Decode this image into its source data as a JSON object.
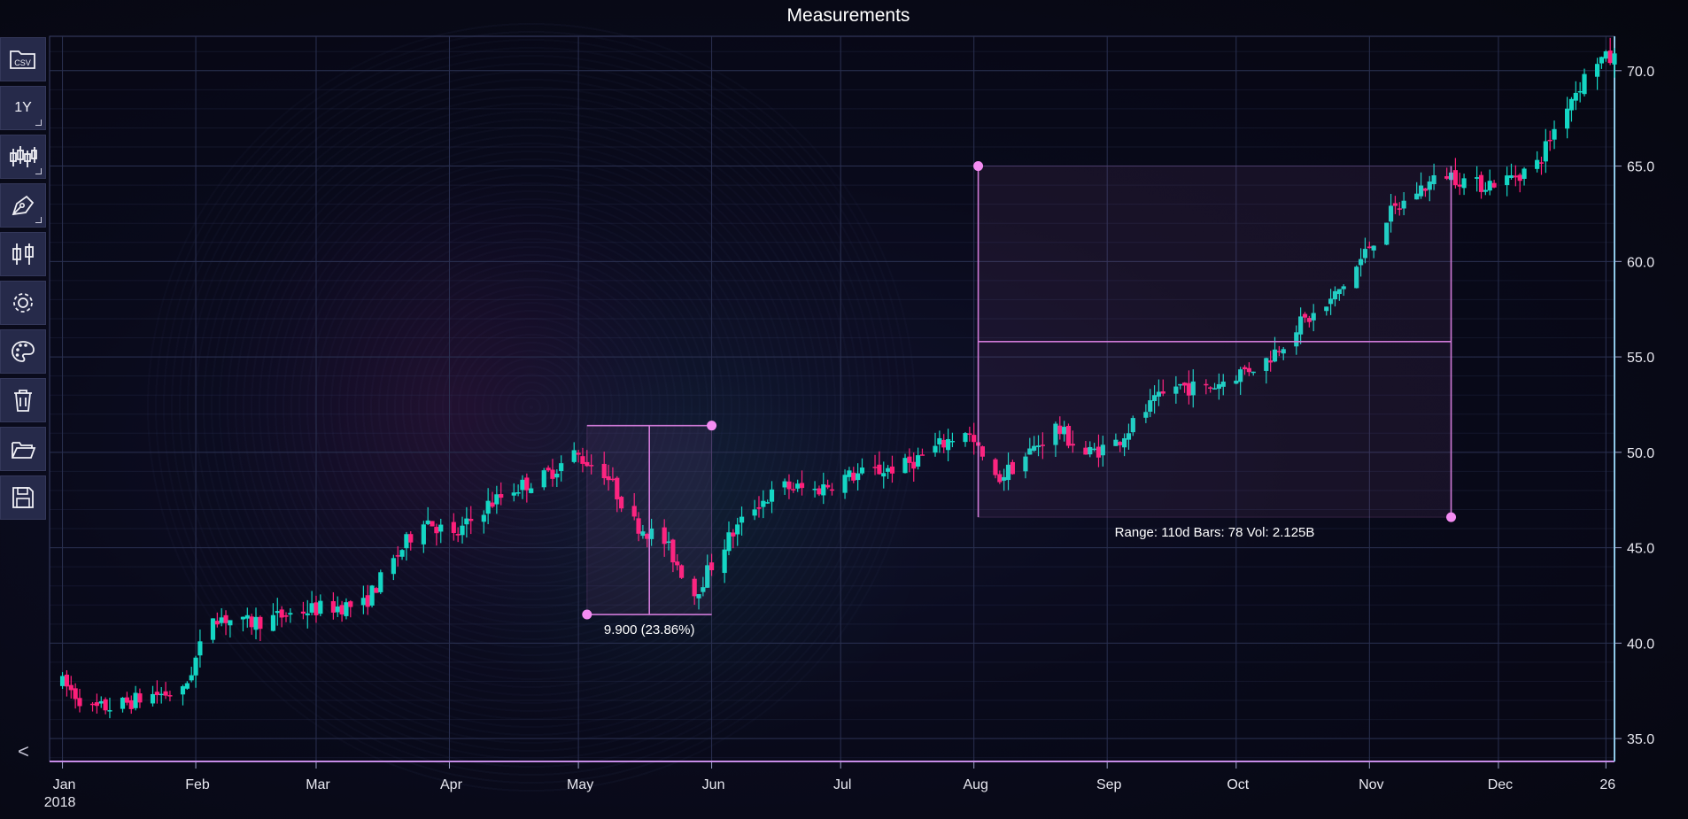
{
  "title": "Measurements",
  "toolbar": {
    "buttons": [
      {
        "icon": "csv-folder-icon",
        "label": "CSV"
      },
      {
        "icon": "timeframe-icon",
        "label": "1Y"
      },
      {
        "icon": "ohlc-icon",
        "label": ""
      },
      {
        "icon": "pen-icon",
        "label": ""
      },
      {
        "icon": "candlestick-icon",
        "label": ""
      },
      {
        "icon": "gear-icon",
        "label": ""
      },
      {
        "icon": "palette-icon",
        "label": ""
      },
      {
        "icon": "trash-icon",
        "label": ""
      },
      {
        "icon": "folder-open-icon",
        "label": ""
      },
      {
        "icon": "save-icon",
        "label": ""
      }
    ],
    "collapse_label": "<"
  },
  "colors": {
    "up": "#14d6c4",
    "down": "#ff1f7a",
    "measure": "#d07ad8",
    "handle": "#f48cf2",
    "grid": "#2a3050"
  },
  "chart_data": {
    "type": "candlestick",
    "title": "Measurements",
    "x_axis": {
      "range": [
        "2017-12-29",
        "2018-12-28"
      ],
      "ticks": [
        {
          "date": "2018-01-01",
          "label": "Jan",
          "sublabel": "2018"
        },
        {
          "date": "2018-02-01",
          "label": "Feb"
        },
        {
          "date": "2018-03-01",
          "label": "Mar"
        },
        {
          "date": "2018-04-01",
          "label": "Apr"
        },
        {
          "date": "2018-05-01",
          "label": "May"
        },
        {
          "date": "2018-06-01",
          "label": "Jun"
        },
        {
          "date": "2018-07-01",
          "label": "Jul"
        },
        {
          "date": "2018-08-01",
          "label": "Aug"
        },
        {
          "date": "2018-09-01",
          "label": "Sep"
        },
        {
          "date": "2018-10-01",
          "label": "Oct"
        },
        {
          "date": "2018-11-01",
          "label": "Nov"
        },
        {
          "date": "2018-12-01",
          "label": "Dec"
        },
        {
          "date": "2018-12-26",
          "label": "26"
        }
      ]
    },
    "y_axis": {
      "range": [
        33.8,
        71.8
      ],
      "ticks": [
        35.0,
        40.0,
        45.0,
        50.0,
        55.0,
        60.0,
        65.0,
        70.0
      ],
      "tick_labels": [
        "35.0",
        "40.0",
        "45.0",
        "50.0",
        "55.0",
        "60.0",
        "65.0",
        "70.0"
      ],
      "side": "right"
    },
    "grid": true,
    "closes": [
      [
        "2018-01-01",
        37.9
      ],
      [
        "2018-01-08",
        36.5
      ],
      [
        "2018-01-15",
        36.8
      ],
      [
        "2018-01-22",
        37.3
      ],
      [
        "2018-01-29",
        37.4
      ],
      [
        "2018-02-05",
        41.5
      ],
      [
        "2018-02-12",
        41.0
      ],
      [
        "2018-02-19",
        41.3
      ],
      [
        "2018-02-26",
        41.7
      ],
      [
        "2018-03-05",
        41.9
      ],
      [
        "2018-03-12",
        42.0
      ],
      [
        "2018-03-19",
        44.3
      ],
      [
        "2018-03-26",
        46.6
      ],
      [
        "2018-04-02",
        45.5
      ],
      [
        "2018-04-09",
        47.1
      ],
      [
        "2018-04-16",
        48.1
      ],
      [
        "2018-04-23",
        48.7
      ],
      [
        "2018-04-30",
        49.9
      ],
      [
        "2018-05-07",
        49.0
      ],
      [
        "2018-05-14",
        46.3
      ],
      [
        "2018-05-21",
        45.3
      ],
      [
        "2018-05-28",
        42.6
      ],
      [
        "2018-06-04",
        45.2
      ],
      [
        "2018-06-11",
        47.2
      ],
      [
        "2018-06-18",
        48.2
      ],
      [
        "2018-06-25",
        48.0
      ],
      [
        "2018-07-02",
        48.7
      ],
      [
        "2018-07-09",
        49.0
      ],
      [
        "2018-07-16",
        49.3
      ],
      [
        "2018-07-23",
        50.2
      ],
      [
        "2018-07-30",
        51.2
      ],
      [
        "2018-08-06",
        48.5
      ],
      [
        "2018-08-13",
        49.8
      ],
      [
        "2018-08-20",
        51.3
      ],
      [
        "2018-08-27",
        49.9
      ],
      [
        "2018-09-03",
        50.5
      ],
      [
        "2018-09-10",
        52.2
      ],
      [
        "2018-09-17",
        53.5
      ],
      [
        "2018-09-24",
        53.3
      ],
      [
        "2018-10-01",
        54.1
      ],
      [
        "2018-10-08",
        54.8
      ],
      [
        "2018-10-15",
        56.6
      ],
      [
        "2018-10-22",
        57.6
      ],
      [
        "2018-10-29",
        59.7
      ],
      [
        "2018-11-05",
        62.3
      ],
      [
        "2018-11-12",
        63.7
      ],
      [
        "2018-11-19",
        64.6
      ],
      [
        "2018-11-26",
        64.0
      ],
      [
        "2018-12-03",
        64.3
      ],
      [
        "2018-12-10",
        65.1
      ],
      [
        "2018-12-17",
        68.3
      ],
      [
        "2018-12-24",
        70.6
      ]
    ],
    "measurements": [
      {
        "start_date": "2018-05-03",
        "end_date": "2018-06-01",
        "high": 51.4,
        "low": 41.5,
        "label": "9.900 (23.86%)"
      },
      {
        "start_date": "2018-08-02",
        "end_date": "2018-11-20",
        "high": 65.0,
        "low": 46.6,
        "label": "Range: 110d Bars: 78 Vol: 2.125B"
      }
    ]
  }
}
